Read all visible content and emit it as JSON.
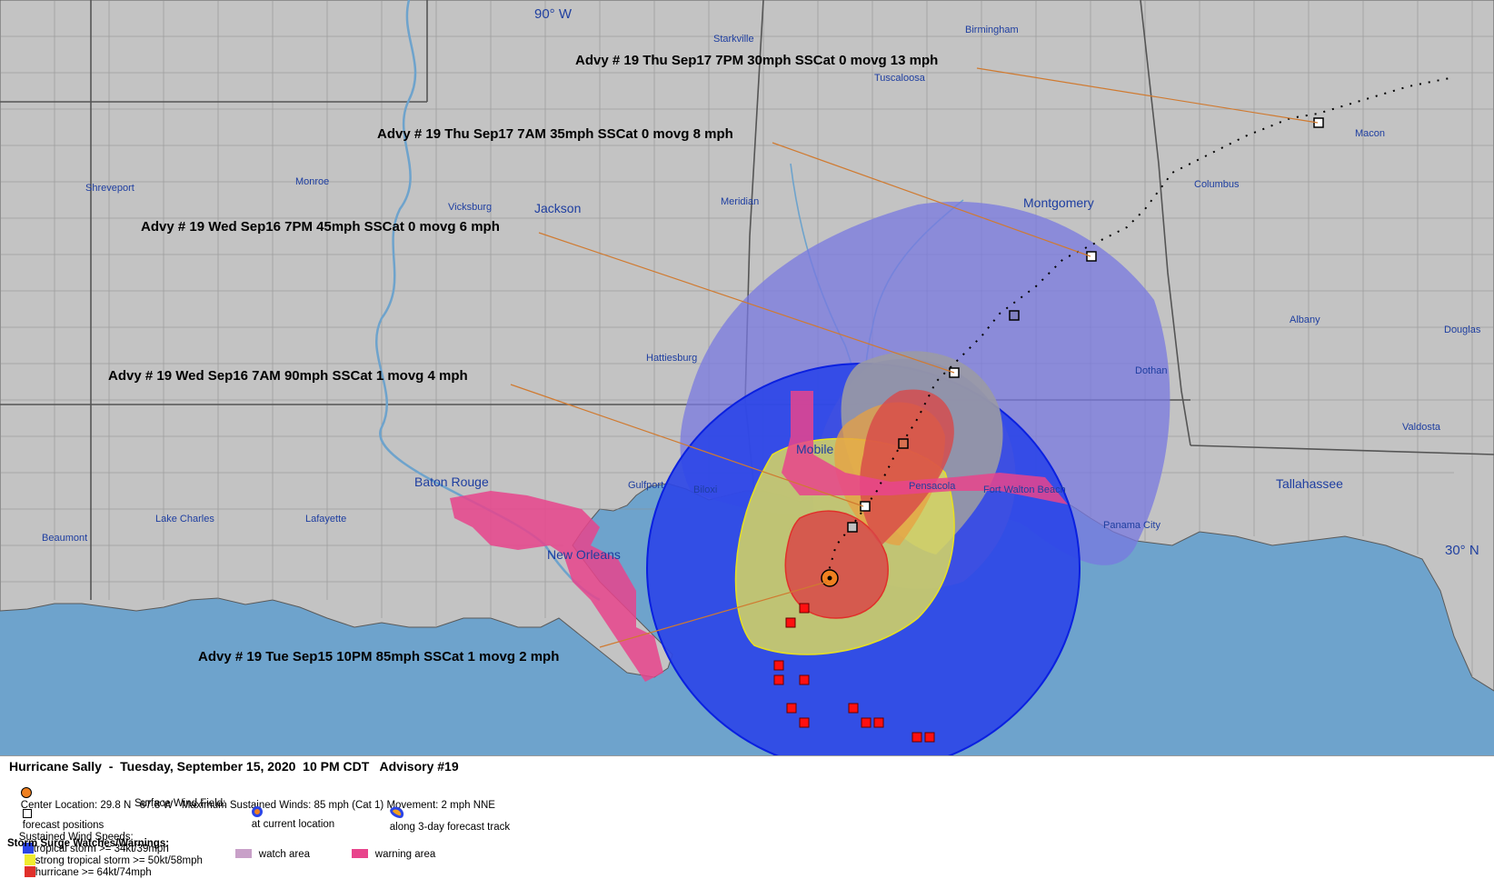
{
  "map": {
    "meridian_label": "90° W",
    "parallel_label": "30° N",
    "cities": [
      {
        "name": "Starkville"
      },
      {
        "name": "Birmingham"
      },
      {
        "name": "Tuscaloosa"
      },
      {
        "name": "Shreveport"
      },
      {
        "name": "Monroe"
      },
      {
        "name": "Vicksburg"
      },
      {
        "name": "Jackson"
      },
      {
        "name": "Meridian"
      },
      {
        "name": "Montgomery"
      },
      {
        "name": "Macon"
      },
      {
        "name": "Columbus"
      },
      {
        "name": "Albany"
      },
      {
        "name": "Douglas"
      },
      {
        "name": "Hattiesburg"
      },
      {
        "name": "Dothan"
      },
      {
        "name": "Mobile"
      },
      {
        "name": "Valdosta"
      },
      {
        "name": "Baton Rouge"
      },
      {
        "name": "Gulfport"
      },
      {
        "name": "Biloxi"
      },
      {
        "name": "Pensacola"
      },
      {
        "name": "Fort Walton Beach"
      },
      {
        "name": "Tallahassee"
      },
      {
        "name": "Lake Charles"
      },
      {
        "name": "Lafayette"
      },
      {
        "name": "Panama City"
      },
      {
        "name": "New Orleans"
      },
      {
        "name": "Beaumont"
      }
    ],
    "advisories": [
      "Advy # 19 Thu Sep17 7PM  30mph SSCat 0 movg 13 mph",
      "Advy # 19 Thu Sep17 7AM  35mph SSCat 0 movg 8 mph",
      "Advy # 19 Wed Sep16 7PM  45mph SSCat 0 movg 6 mph",
      "Advy # 19 Wed Sep16 7AM  90mph SSCat 1 movg 4 mph",
      "Advy # 19 Tue Sep15 10PM  85mph SSCat 1 movg 2 mph"
    ],
    "colors": {
      "land": "#c3c3c3",
      "water": "#6ea3cc",
      "tropical_storm": "#2b45e8",
      "strong_tropical_storm": "#f0ec30",
      "hurricane": "#e0302a",
      "warning": "#e8448c",
      "watch": "#c8a0c8",
      "cone": "#7878e0"
    }
  },
  "legend": {
    "title": "Hurricane Sally  -  Tuesday, September 15, 2020  10 PM CDT   Advisory #19",
    "center_location": "Center Location: 29.8 N   87.8 W   Maximum Sustained Winds: 85 mph (Cat 1) Movement: 2 mph NNE",
    "forecast_positions": "forecast positions",
    "surface_wind_field": "Surface Wind Field:",
    "at_current_location": "at current location",
    "along_track": "along 3-day forecast track",
    "sustained_wind_speeds": "Sustained Wind Speeds:",
    "ts_label": "tropical storm >= 34kt/39mph",
    "sts_label": "strong tropical storm >= 50kt/58mph",
    "hu_label": "hurricane >= 64kt/74mph",
    "surge_label": "Storm Surge Watches/Warnings:",
    "watch_area": "watch area",
    "warning_area": "warning area"
  }
}
